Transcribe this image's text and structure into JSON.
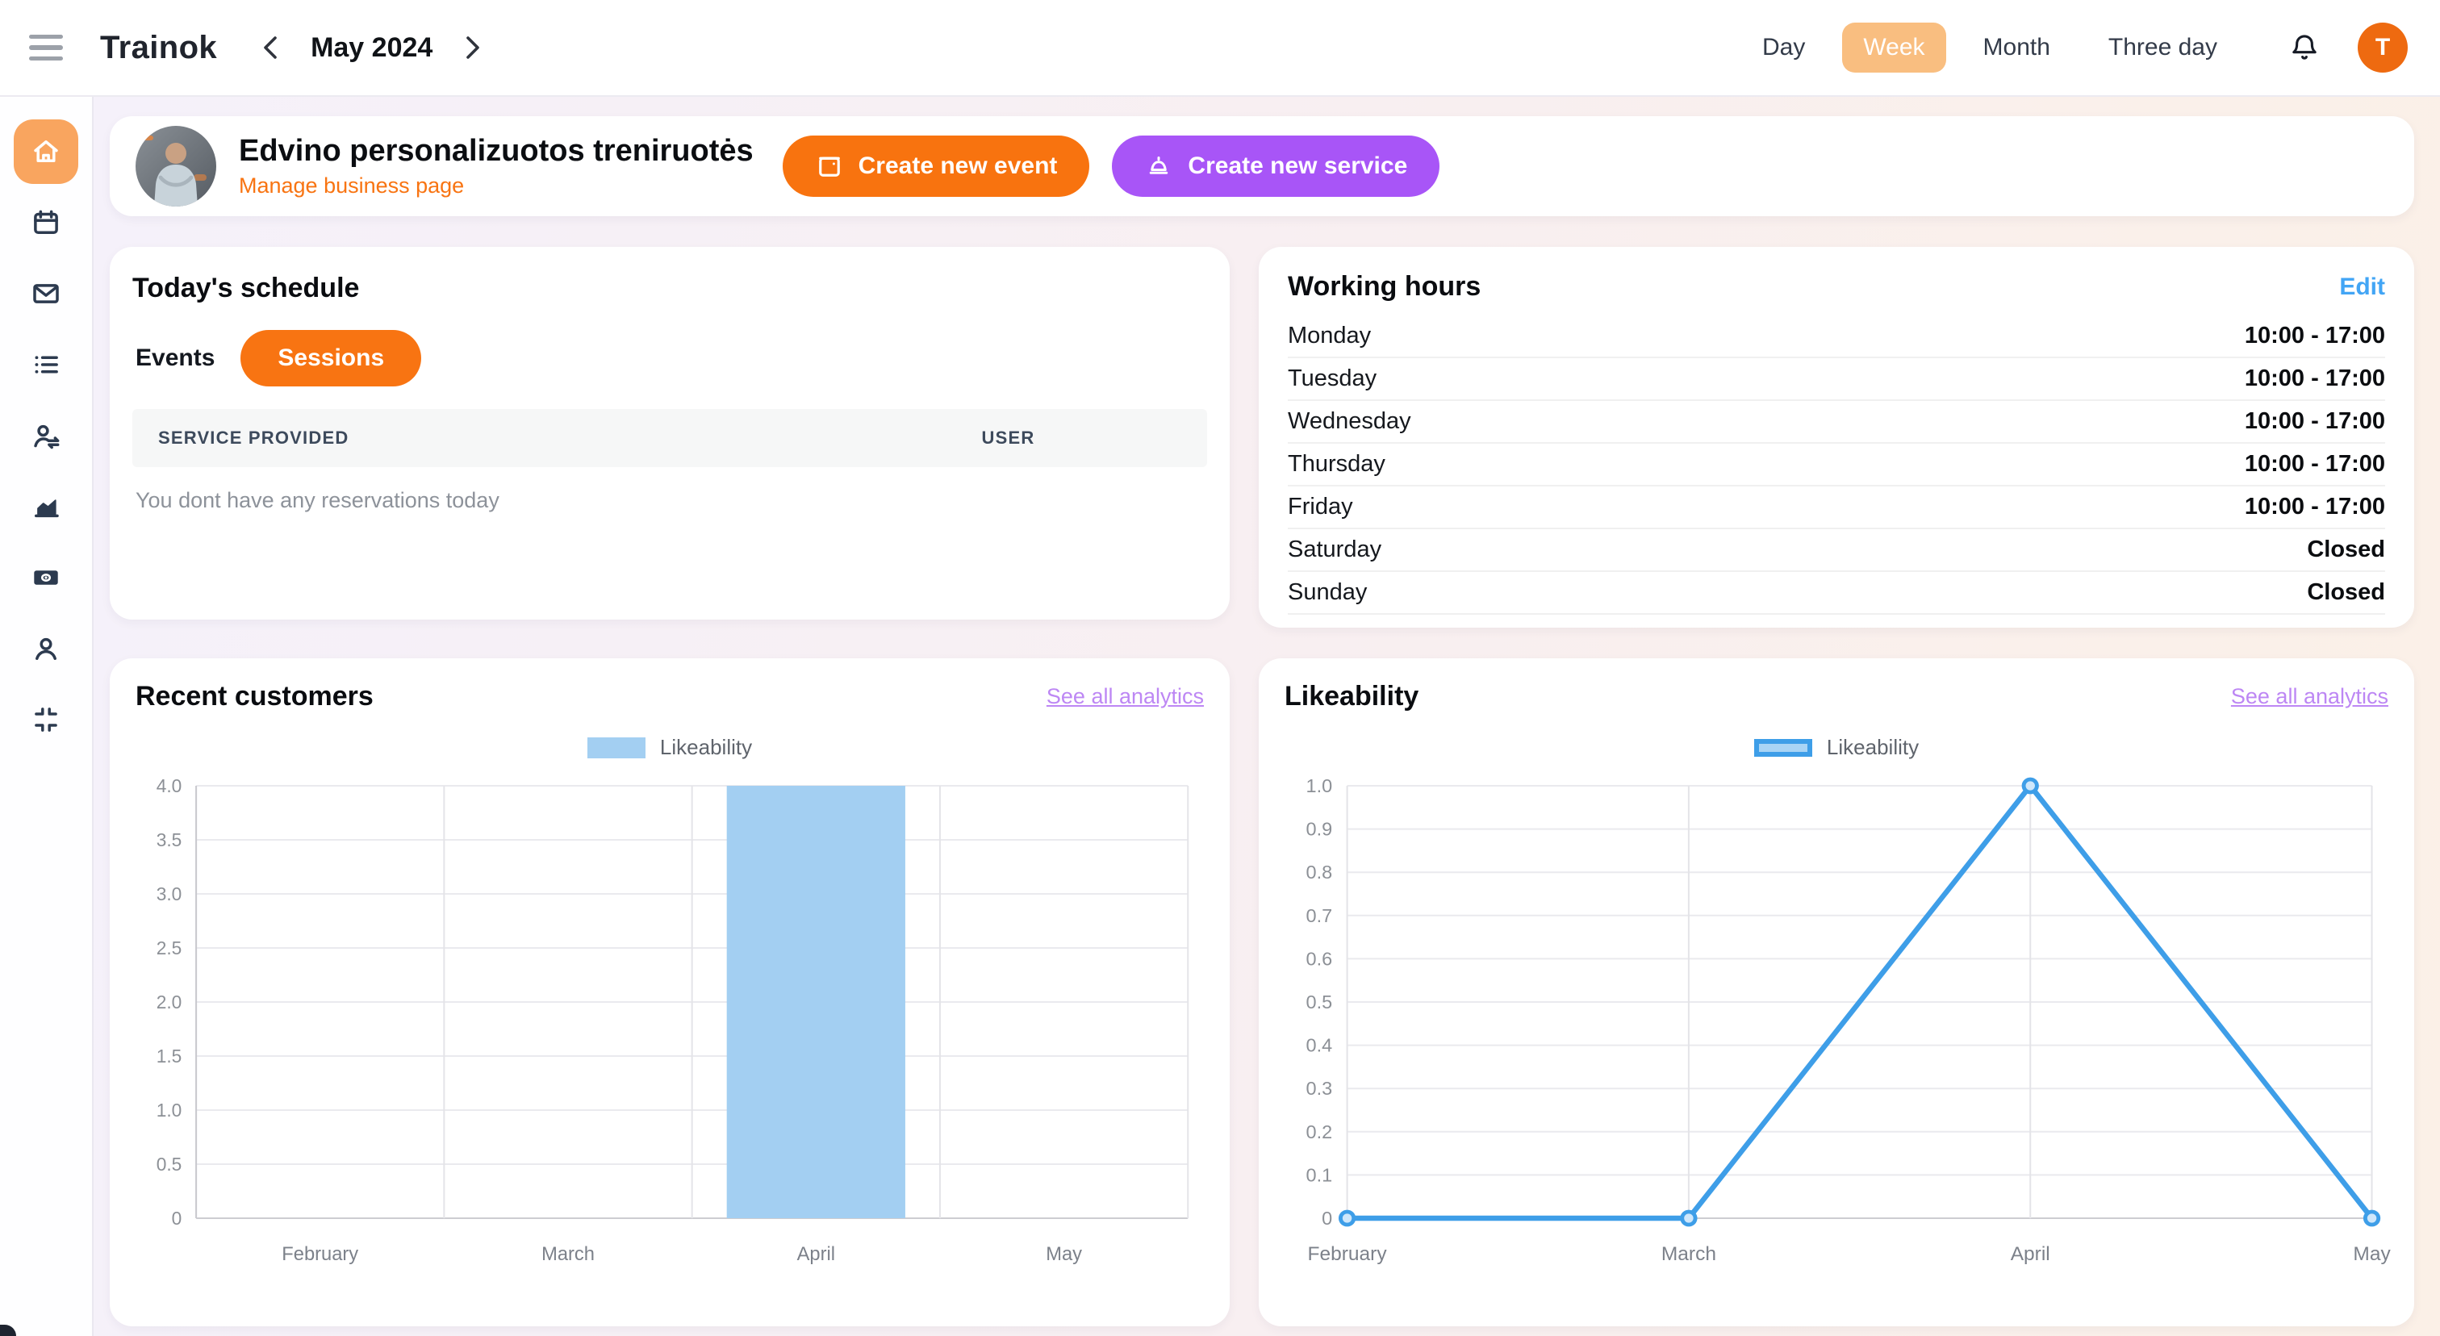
{
  "topbar": {
    "brand": "Trainok",
    "date_label": "May 2024",
    "views": [
      "Day",
      "Week",
      "Month",
      "Three day"
    ],
    "active_view": "Week",
    "avatar_initial": "T"
  },
  "sidebar": {
    "items": [
      "home",
      "calendar",
      "mail",
      "list",
      "user-arrows",
      "area-chart",
      "money",
      "user",
      "merge"
    ],
    "active_item": "home"
  },
  "header": {
    "business_name": "Edvino personalizuotos treniruotės",
    "manage_link": "Manage business page",
    "create_event_label": "Create new event",
    "create_service_label": "Create new service"
  },
  "schedule": {
    "title": "Today's schedule",
    "tabs": [
      "Events",
      "Sessions"
    ],
    "active_tab": "Sessions",
    "columns": [
      "Service provided",
      "User"
    ],
    "empty_message": "You dont have any reservations today"
  },
  "working_hours": {
    "title": "Working hours",
    "edit_label": "Edit",
    "rows": [
      {
        "day": "Monday",
        "hours": "10:00 - 17:00"
      },
      {
        "day": "Tuesday",
        "hours": "10:00 - 17:00"
      },
      {
        "day": "Wednesday",
        "hours": "10:00 - 17:00"
      },
      {
        "day": "Thursday",
        "hours": "10:00 - 17:00"
      },
      {
        "day": "Friday",
        "hours": "10:00 - 17:00"
      },
      {
        "day": "Saturday",
        "hours": "Closed"
      },
      {
        "day": "Sunday",
        "hours": "Closed"
      }
    ]
  },
  "chart_data": [
    {
      "type": "bar",
      "title": "Recent customers",
      "link": "See all analytics",
      "categories": [
        "February",
        "March",
        "April",
        "May"
      ],
      "series": [
        {
          "name": "Likeability",
          "values": [
            0,
            0,
            4,
            0
          ],
          "color": "#A3CFF2"
        }
      ],
      "ylim": [
        0,
        4
      ],
      "ytick_step": 0.5,
      "grid": true,
      "legend_position": "top"
    },
    {
      "type": "line",
      "title": "Likeability",
      "link": "See all analytics",
      "categories": [
        "February",
        "March",
        "April",
        "May"
      ],
      "series": [
        {
          "name": "Likeability",
          "values": [
            0,
            0,
            1,
            0
          ],
          "color": "#3E9EE8",
          "fill": "#A9D4F5",
          "point_fill": "#CFE7FB"
        }
      ],
      "ylim": [
        0,
        1
      ],
      "ytick_step": 0.1,
      "grid": true,
      "legend_position": "top"
    }
  ],
  "colors": {
    "accent_orange": "#F87412",
    "active_view_orange": "#F9BE80",
    "sidebar_active_orange": "#F9A55F",
    "avatar_orange": "#EE6A10",
    "accent_purple": "#A855F7",
    "link_purple": "#BD87F4",
    "link_blue": "#42A5F5",
    "bar_blue": "#A3CFF2",
    "line_blue": "#3E9EE8"
  }
}
